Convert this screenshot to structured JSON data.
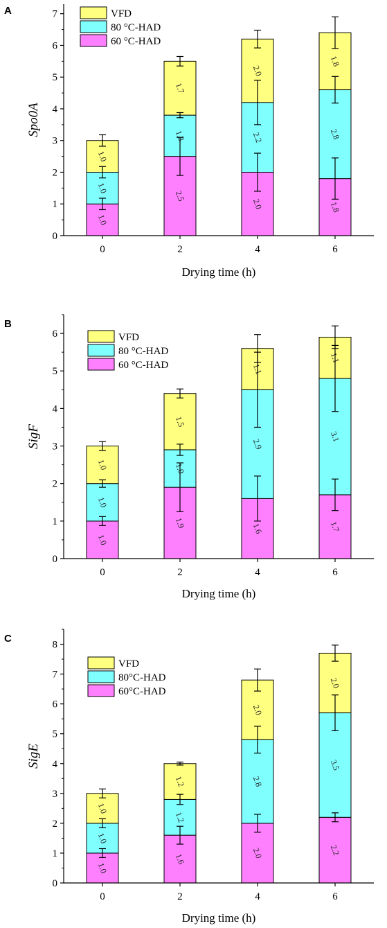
{
  "chart_data": [
    {
      "type": "bar",
      "stacked": true,
      "panel_label": "A",
      "categories": [
        "0",
        "2",
        "4",
        "6"
      ],
      "xlabel": "Drying time (h)",
      "ylabel": "Spo0A",
      "ylim": [
        0,
        7.3
      ],
      "yticks": [
        "0",
        "1",
        "2",
        "3",
        "4",
        "5",
        "6",
        "7"
      ],
      "legend_position": "top-left",
      "series": [
        {
          "name": "60 °C-HAD",
          "color": "#ff80ff",
          "values": [
            1.0,
            2.5,
            2.0,
            1.8
          ],
          "labels": [
            "1.0",
            "2.5",
            "2.0",
            "1.8"
          ],
          "errors": [
            0.18,
            0.6,
            0.6,
            0.65
          ]
        },
        {
          "name": "80 °C-HAD",
          "color": "#80ffff",
          "values": [
            1.0,
            1.3,
            2.2,
            2.8
          ],
          "labels": [
            "1.0",
            "1.3",
            "2.2",
            "2.8"
          ],
          "errors": [
            0.18,
            0.08,
            0.7,
            0.42
          ]
        },
        {
          "name": "VFD",
          "color": "#ffff80",
          "values": [
            1.0,
            1.7,
            2.0,
            1.8
          ],
          "labels": [
            "1.0",
            "1.7",
            "2.0",
            "1.8"
          ],
          "errors": [
            0.18,
            0.15,
            0.28,
            0.5
          ]
        }
      ]
    },
    {
      "type": "bar",
      "stacked": true,
      "panel_label": "B",
      "categories": [
        "0",
        "2",
        "4",
        "6"
      ],
      "xlabel": "Drying time (h)",
      "ylabel": "SigF",
      "ylim": [
        0,
        6.5
      ],
      "yticks": [
        "0",
        "1",
        "2",
        "3",
        "4",
        "5",
        "6"
      ],
      "legend_position": "top-left",
      "series": [
        {
          "name": "60 °C-HAD",
          "color": "#ff80ff",
          "values": [
            1.0,
            1.9,
            1.6,
            1.7
          ],
          "labels": [
            "1.0",
            "1.9",
            "1.6",
            "1.7"
          ],
          "errors": [
            0.12,
            0.65,
            0.6,
            0.42
          ]
        },
        {
          "name": "80 °C-HAD",
          "color": "#80ffff",
          "values": [
            1.0,
            1.0,
            2.9,
            3.1
          ],
          "labels": [
            "1.0",
            "1.0",
            "2.9",
            "3.1"
          ],
          "errors": [
            0.1,
            0.15,
            1.0,
            0.88
          ]
        },
        {
          "name": "VFD",
          "color": "#ffff80",
          "values": [
            1.0,
            1.5,
            1.1,
            1.1
          ],
          "labels": [
            "1.0",
            "1.5",
            "1.1",
            "1.1"
          ],
          "errors": [
            0.12,
            0.12,
            0.37,
            0.3
          ]
        }
      ]
    },
    {
      "type": "bar",
      "stacked": true,
      "panel_label": "C",
      "categories": [
        "0",
        "2",
        "4",
        "6"
      ],
      "xlabel": "Drying time (h)",
      "ylabel": "SigE",
      "ylim": [
        0,
        8.5
      ],
      "yticks": [
        "0",
        "1",
        "2",
        "3",
        "4",
        "5",
        "6",
        "7",
        "8"
      ],
      "legend_position": "top-left",
      "series": [
        {
          "name": "60°C-HAD",
          "color": "#ff80ff",
          "values": [
            1.0,
            1.6,
            2.0,
            2.2
          ],
          "labels": [
            "1.0",
            "1.6",
            "2.0",
            "2.2"
          ],
          "errors": [
            0.15,
            0.3,
            0.3,
            0.15
          ]
        },
        {
          "name": "80°C-HAD",
          "color": "#80ffff",
          "values": [
            1.0,
            1.2,
            2.8,
            3.5
          ],
          "labels": [
            "1.0",
            "1.2",
            "2.8",
            "3.5"
          ],
          "errors": [
            0.15,
            0.17,
            0.45,
            0.6
          ]
        },
        {
          "name": "VFD",
          "color": "#ffff80",
          "values": [
            1.0,
            1.2,
            2.0,
            2.0
          ],
          "labels": [
            "1.0",
            "1.2",
            "2.0",
            "2.0"
          ],
          "errors": [
            0.15,
            0.05,
            0.37,
            0.27
          ]
        }
      ]
    }
  ]
}
